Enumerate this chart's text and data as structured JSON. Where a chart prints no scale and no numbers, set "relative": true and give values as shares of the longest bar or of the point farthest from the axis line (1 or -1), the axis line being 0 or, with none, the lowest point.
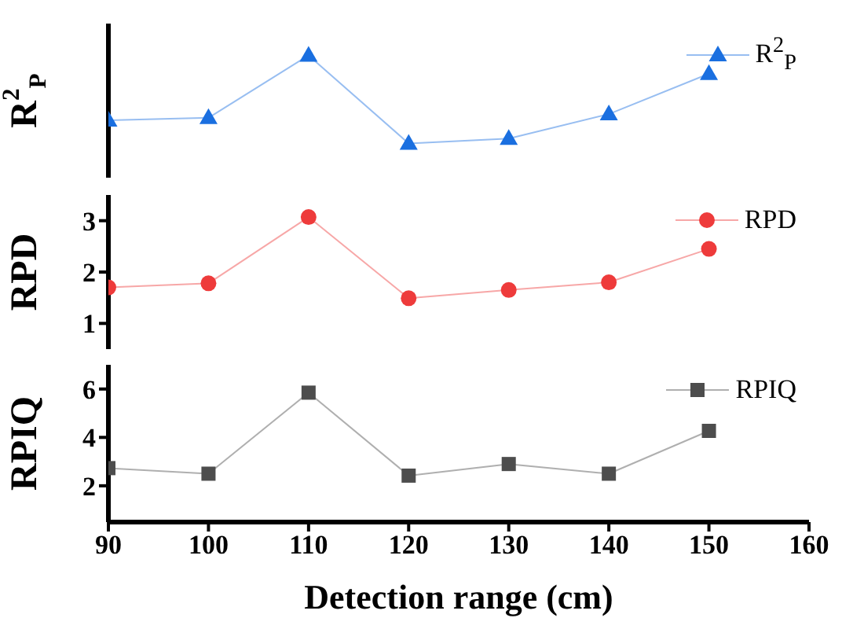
{
  "chart_data": [
    {
      "type": "line",
      "ylabel": "R$^{2}$$_{P}$",
      "relative": true,
      "x": [
        90,
        100,
        110,
        120,
        130,
        140,
        150
      ],
      "xlim": [
        90,
        160
      ],
      "xticks": [
        90,
        100,
        110,
        120,
        130,
        140,
        150,
        160
      ],
      "tick_labels": false,
      "legend": "top right",
      "marker": "triangle",
      "series": [
        {
          "name": "R$^{2}$$_{P}$",
          "color": "#1a6fe0",
          "values": [
            0.47,
            0.49,
            1,
            0.28,
            0.32,
            0.52,
            0.85
          ]
        }
      ]
    },
    {
      "type": "line",
      "ylabel": "RPD",
      "x": [
        90,
        100,
        110,
        120,
        130,
        140,
        150
      ],
      "xlim": [
        90,
        160
      ],
      "xticks": [
        90,
        100,
        110,
        120,
        130,
        140,
        150,
        160
      ],
      "ylim": [
        0.5,
        3.5
      ],
      "yticks": [
        1,
        2,
        3
      ],
      "tick_labels": "y",
      "legend": "top right",
      "marker": "circle",
      "series": [
        {
          "name": "RPD",
          "color": "#ee3b3b",
          "values": [
            1.7,
            1.78,
            3.07,
            1.49,
            1.65,
            1.8,
            2.45
          ]
        }
      ]
    },
    {
      "type": "line",
      "ylabel": "RPIQ",
      "xlabel": "Detection range (cm)",
      "x": [
        90,
        100,
        110,
        120,
        130,
        140,
        150
      ],
      "xlim": [
        90,
        160
      ],
      "xticks": [
        90,
        100,
        110,
        120,
        130,
        140,
        150,
        160
      ],
      "ylim": [
        0.5,
        7
      ],
      "yticks": [
        2,
        4,
        6
      ],
      "legend": "top right",
      "marker": "square",
      "series": [
        {
          "name": "RPIQ",
          "color": "#4d4d4d",
          "values": [
            2.73,
            2.5,
            5.85,
            2.42,
            2.9,
            2.5,
            4.27
          ]
        }
      ]
    }
  ]
}
